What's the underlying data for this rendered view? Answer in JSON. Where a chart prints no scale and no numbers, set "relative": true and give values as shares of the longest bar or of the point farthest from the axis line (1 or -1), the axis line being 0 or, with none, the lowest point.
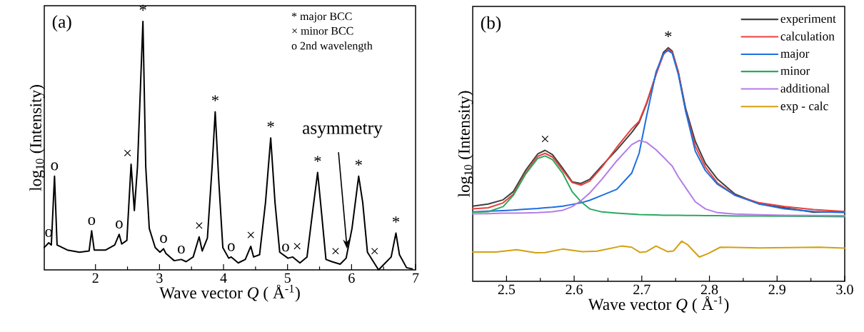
{
  "chart_data": [
    {
      "type": "line",
      "relative": true,
      "xlabel": "Wave vector *Q* ( Å$^{-1}$)",
      "ylabel": "log$_{10}$ (Intensity)",
      "xlim": [
        1.2,
        7
      ],
      "xticks": [
        2,
        3,
        4,
        5,
        6,
        7
      ],
      "legend": false,
      "x": [
        1.2,
        1.27,
        1.31,
        1.36,
        1.4,
        1.56,
        1.75,
        1.9,
        1.94,
        1.98,
        2.16,
        2.3,
        2.37,
        2.41,
        2.49,
        2.556,
        2.607,
        2.656,
        2.741,
        2.785,
        2.84,
        2.933,
        3.007,
        3.063,
        3.1,
        3.23,
        3.34,
        3.415,
        3.526,
        3.619,
        3.667,
        3.748,
        3.822,
        3.87,
        3.926,
        3.989,
        4.081,
        4.12,
        4.23,
        4.34,
        4.426,
        4.47,
        4.563,
        4.656,
        4.737,
        4.804,
        4.878,
        5.007,
        5.081,
        5.193,
        5.304,
        5.396,
        5.47,
        5.526,
        5.6,
        5.693,
        5.822,
        5.915,
        6.007,
        6.111,
        6.174,
        6.248,
        6.341,
        6.422,
        6.489,
        6.619,
        6.693,
        6.748,
        6.859,
        6.95
      ],
      "series": [
        {
          "color": "#000000",
          "values": [
            0.09,
            0.109,
            0.1,
            0.377,
            0.1,
            0.08,
            0.071,
            0.076,
            0.157,
            0.08,
            0.08,
            0.1,
            0.143,
            0.104,
            0.119,
            0.425,
            0.239,
            0.416,
            1.0,
            0.416,
            0.167,
            0.09,
            0.071,
            0.085,
            0.066,
            0.037,
            0.042,
            0.033,
            0.052,
            0.133,
            0.076,
            0.128,
            0.416,
            0.636,
            0.358,
            0.09,
            0.047,
            0.052,
            0.028,
            0.042,
            0.095,
            0.052,
            0.061,
            0.272,
            0.531,
            0.272,
            0.071,
            0.047,
            0.052,
            0.028,
            0.052,
            0.243,
            0.392,
            0.243,
            0.042,
            0.033,
            0.023,
            0.047,
            0.167,
            0.377,
            0.272,
            0.071,
            0.033,
            0.0,
            0.018,
            0.052,
            0.148,
            0.061,
            0.009,
            0.004
          ]
        }
      ],
      "annotations": [
        "(a)",
        "* major BCC",
        "× minor BCC",
        "o 2nd wavelength",
        {
          "text": "o",
          "x": 1.27,
          "y": 0.109
        },
        {
          "text": "o",
          "x": 1.36,
          "y": 0.377
        },
        {
          "text": "o",
          "x": 1.94,
          "y": 0.157
        },
        {
          "text": "o",
          "x": 2.37,
          "y": 0.143
        },
        {
          "text": "×",
          "x": 2.5,
          "y": 0.425
        },
        {
          "text": "*",
          "x": 2.741,
          "y": 1.0
        },
        {
          "text": "o",
          "x": 3.063,
          "y": 0.085
        },
        {
          "text": "o",
          "x": 3.34,
          "y": 0.042
        },
        {
          "text": "×",
          "x": 3.619,
          "y": 0.133
        },
        {
          "text": "*",
          "x": 3.87,
          "y": 0.636
        },
        {
          "text": "o",
          "x": 4.12,
          "y": 0.052
        },
        {
          "text": "×",
          "x": 4.426,
          "y": 0.095
        },
        {
          "text": "*",
          "x": 4.737,
          "y": 0.531
        },
        {
          "text": "o",
          "x": 4.97,
          "y": 0.05
        },
        {
          "text": "×",
          "x": 5.15,
          "y": 0.05
        },
        {
          "text": "*",
          "x": 5.47,
          "y": 0.392
        },
        {
          "text": "×",
          "x": 5.75,
          "y": 0.03
        },
        {
          "text": "*",
          "x": 6.111,
          "y": 0.377
        },
        {
          "text": "×",
          "x": 6.36,
          "y": 0.03
        },
        {
          "text": "*",
          "x": 6.693,
          "y": 0.148
        },
        {
          "text": "asymmetry",
          "x": 5.93,
          "y": 0.085
        }
      ]
    },
    {
      "type": "line",
      "relative": true,
      "xlabel": "Wave vector *Q* ( Å$^{-1}$)",
      "ylabel": "log$_{10}$ (Intensity)",
      "xlim": [
        2.45,
        3.0
      ],
      "xticks": [
        2.5,
        2.6,
        2.7,
        2.8,
        2.9,
        {
          "value": 3,
          "label": "3.0"
        }
      ],
      "legend": "top right",
      "x": [
        2.45,
        2.473,
        2.495,
        2.51,
        2.528,
        2.546,
        2.557,
        2.568,
        2.583,
        2.597,
        2.61,
        2.623,
        2.641,
        2.663,
        2.685,
        2.696,
        2.707,
        2.721,
        2.732,
        2.739,
        2.745,
        2.754,
        2.765,
        2.779,
        2.794,
        2.812,
        2.838,
        2.874,
        2.911,
        2.954,
        3.0
      ],
      "series": [
        {
          "name": "experiment",
          "color": "#404040",
          "values": [
            0.322,
            0.331,
            0.349,
            0.384,
            0.474,
            0.545,
            0.561,
            0.542,
            0.484,
            0.426,
            0.419,
            0.437,
            0.495,
            0.563,
            0.637,
            0.68,
            0.759,
            0.886,
            0.981,
            1.0,
            0.986,
            0.896,
            0.738,
            0.6,
            0.505,
            0.437,
            0.373,
            0.331,
            0.315,
            0.296,
            0.299
          ]
        },
        {
          "name": "calculation",
          "color": "#e8403c",
          "values": [
            0.31,
            0.315,
            0.336,
            0.373,
            0.463,
            0.535,
            0.548,
            0.532,
            0.476,
            0.423,
            0.412,
            0.429,
            0.489,
            0.574,
            0.653,
            0.685,
            0.764,
            0.886,
            0.97,
            0.994,
            0.981,
            0.896,
            0.727,
            0.579,
            0.489,
            0.421,
            0.368,
            0.336,
            0.32,
            0.307,
            0.299
          ]
        },
        {
          "name": "major",
          "color": "#1e6fe0",
          "values": [
            0.297,
            0.3,
            0.303,
            0.305,
            0.309,
            0.312,
            0.315,
            0.317,
            0.322,
            0.329,
            0.336,
            0.347,
            0.368,
            0.394,
            0.463,
            0.548,
            0.706,
            0.896,
            0.976,
            0.988,
            0.976,
            0.886,
            0.727,
            0.558,
            0.474,
            0.415,
            0.368,
            0.331,
            0.31,
            0.299,
            0.294
          ]
        },
        {
          "name": "minor",
          "color": "#2ca860",
          "values": [
            0.296,
            0.298,
            0.32,
            0.368,
            0.458,
            0.526,
            0.537,
            0.521,
            0.463,
            0.384,
            0.341,
            0.31,
            0.297,
            0.292,
            0.288,
            0.286,
            0.285,
            0.284,
            0.283,
            0.283,
            0.283,
            0.283,
            0.282,
            0.282,
            0.281,
            0.281,
            0.28,
            0.28,
            0.279,
            0.278,
            0.277
          ]
        },
        {
          "name": "additional",
          "color": "#b57ce6",
          "values": [
            0.289,
            0.29,
            0.292,
            0.292,
            0.293,
            0.294,
            0.296,
            0.298,
            0.304,
            0.32,
            0.345,
            0.378,
            0.437,
            0.516,
            0.585,
            0.603,
            0.595,
            0.563,
            0.532,
            0.511,
            0.493,
            0.447,
            0.4,
            0.341,
            0.31,
            0.294,
            0.288,
            0.285,
            0.283,
            0.282,
            0.281
          ]
        },
        {
          "name": "exp - calc",
          "color": "#d4a010",
          "x": [
            2.45,
            2.484,
            2.515,
            2.543,
            2.557,
            2.583,
            2.612,
            2.634,
            2.67,
            2.685,
            2.697,
            2.707,
            2.721,
            2.738,
            2.747,
            2.759,
            2.768,
            2.785,
            2.798,
            2.816,
            2.874,
            2.962,
            3.0
          ],
          "values": [
            0.125,
            0.125,
            0.135,
            0.122,
            0.123,
            0.138,
            0.127,
            0.129,
            0.151,
            0.146,
            0.124,
            0.127,
            0.151,
            0.127,
            0.13,
            0.172,
            0.156,
            0.104,
            0.119,
            0.146,
            0.143,
            0.146,
            0.142
          ]
        }
      ],
      "annotations": [
        "(b)",
        {
          "text": "×",
          "x": 2.557,
          "y": 0.561
        },
        {
          "text": "*",
          "x": 2.739,
          "y": 1.0
        }
      ]
    }
  ]
}
